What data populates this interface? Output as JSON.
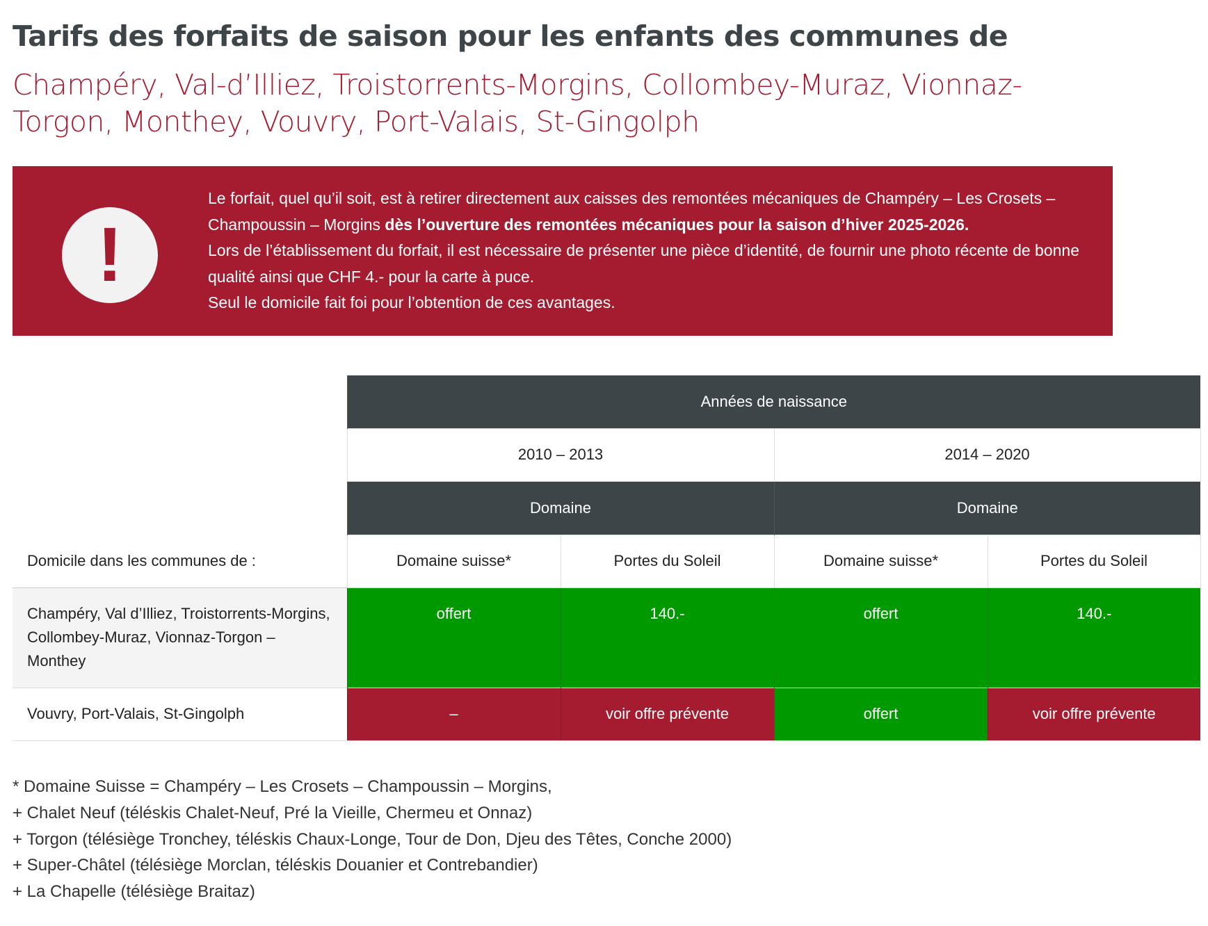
{
  "header": {
    "title": "Tarifs des forfaits de saison pour les enfants des communes de",
    "subtitle": "Champéry, Val-d’Illiez, Troistorrents-Morgins, Collombey-Muraz, Vionnaz-Torgon, Monthey, Vouvry, Port-Valais, St-Gingolph"
  },
  "notice": {
    "icon": "!",
    "text_1": "Le forfait, quel qu’il soit, est à retirer directement aux caisses des remontées mécaniques de Champéry – Les Crosets – Champoussin – Morgins",
    "bold": "dès l’ouverture des remontées mécaniques pour la saison d’hiver 2025-2026.",
    "text_2": "Lors de l’établissement du forfait, il est nécessaire de présenter une pièce d’identité, de fournir une photo récente de bonne qualité ainsi que CHF 4.- pour la carte à puce.",
    "text_3": "Seul le domicile fait foi pour l’obtention de ces avantages."
  },
  "table": {
    "header_top": "Années de naissance",
    "years": [
      "2010 – 2013",
      "2014 – 2020"
    ],
    "domains": [
      "Domaine",
      "Domaine"
    ],
    "row_label_header": "Domicile dans les communes de :",
    "subheaders": [
      "Domaine suisse*",
      "Portes du Soleil",
      "Domaine suisse*",
      "Portes du Soleil"
    ],
    "rows": [
      {
        "label": "Champéry, Val d’Illiez, Troistorrents-Morgins, Collombey-Muraz, Vionnaz-Torgon – Monthey",
        "cells": [
          {
            "text": "offert",
            "color": "#009a00"
          },
          {
            "text": "140.-",
            "color": "#009a00"
          },
          {
            "text": "offert",
            "color": "#009a00"
          },
          {
            "text": "140.-",
            "color": "#009a00"
          }
        ]
      },
      {
        "label": "Vouvry, Port-Valais, St-Gingolph",
        "cells": [
          {
            "text": "–",
            "color": "#a51c30"
          },
          {
            "text": "voir offre prévente",
            "color": "#a51c30"
          },
          {
            "text": "offert",
            "color": "#009a00"
          },
          {
            "text": "voir offre prévente",
            "color": "#a51c30"
          }
        ]
      }
    ]
  },
  "footnotes": [
    "* Domaine Suisse = Champéry – Les Crosets – Champoussin – Morgins,",
    "+ Chalet Neuf (téléskis Chalet-Neuf, Pré la Vieille, Chermeu et Onnaz)",
    "+ Torgon (télésiège Tronchey, téléskis Chaux-Longe, Tour de Don, Djeu des Têtes, Conche 2000)",
    "+ Super-Châtel (télésiège Morclan, téléskis Douanier et Contrebandier)",
    "+ La Chapelle (télésiège Braitaz)"
  ]
}
